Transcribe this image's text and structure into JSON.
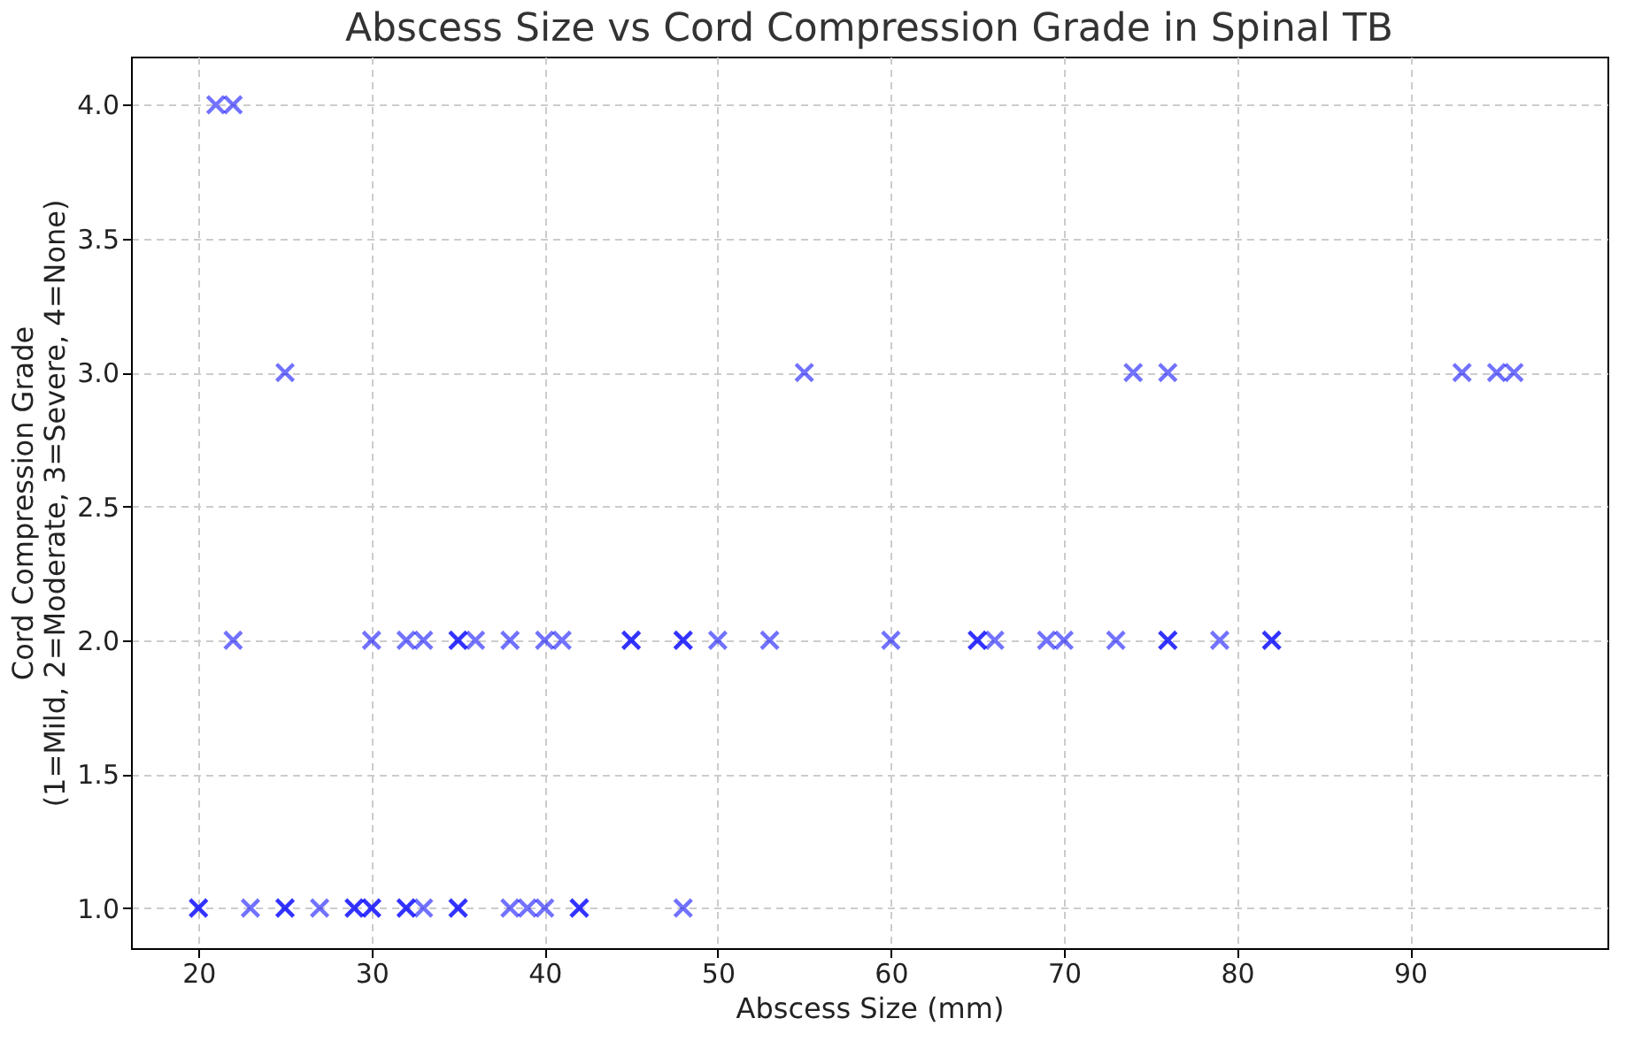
{
  "chart_data": {
    "type": "scatter",
    "title": "Abscess Size vs Cord Compression Grade in Spinal TB",
    "xlabel": "Abscess Size (mm)",
    "ylabel": "Cord Compression Grade\n(1=Mild, 2=Moderate, 3=Severe, 4=None)",
    "series": [
      {
        "color": "#0000ff",
        "x": [
          20,
          20,
          23,
          25,
          25,
          27,
          29,
          29,
          30,
          30,
          32,
          32,
          33,
          35,
          35,
          38,
          39,
          40,
          42,
          42,
          48,
          22,
          30,
          32,
          33,
          35,
          35,
          36,
          38,
          40,
          41,
          45,
          45,
          48,
          48,
          50,
          53,
          60,
          65,
          65,
          66,
          69,
          70,
          73,
          76,
          76,
          79,
          82,
          82,
          25,
          55,
          74,
          76,
          93,
          95,
          96,
          21,
          22
        ],
        "values": [
          1,
          1,
          1,
          1,
          1,
          1,
          1,
          1,
          1,
          1,
          1,
          1,
          1,
          1,
          1,
          1,
          1,
          1,
          1,
          1,
          1,
          2,
          2,
          2,
          2,
          2,
          2,
          2,
          2,
          2,
          2,
          2,
          2,
          2,
          2,
          2,
          2,
          2,
          2,
          2,
          2,
          2,
          2,
          2,
          2,
          2,
          2,
          2,
          2,
          3,
          3,
          3,
          3,
          3,
          3,
          3,
          4,
          4
        ]
      }
    ],
    "xlim": [
      16.1,
      101.4
    ],
    "ylim": [
      0.85,
      4.18
    ],
    "xticks": [
      20,
      30,
      40,
      50,
      60,
      70,
      80,
      90
    ],
    "yticks": [
      {
        "value": 1,
        "label": "1.0"
      },
      {
        "value": 1.5,
        "label": "1.5"
      },
      {
        "value": 2,
        "label": "2.0"
      },
      {
        "value": 2.5,
        "label": "2.5"
      },
      {
        "value": 3,
        "label": "3.0"
      },
      {
        "value": 3.5,
        "label": "3.5"
      },
      {
        "value": 4,
        "label": "4.0"
      }
    ],
    "grid": true,
    "marker": "cross"
  }
}
